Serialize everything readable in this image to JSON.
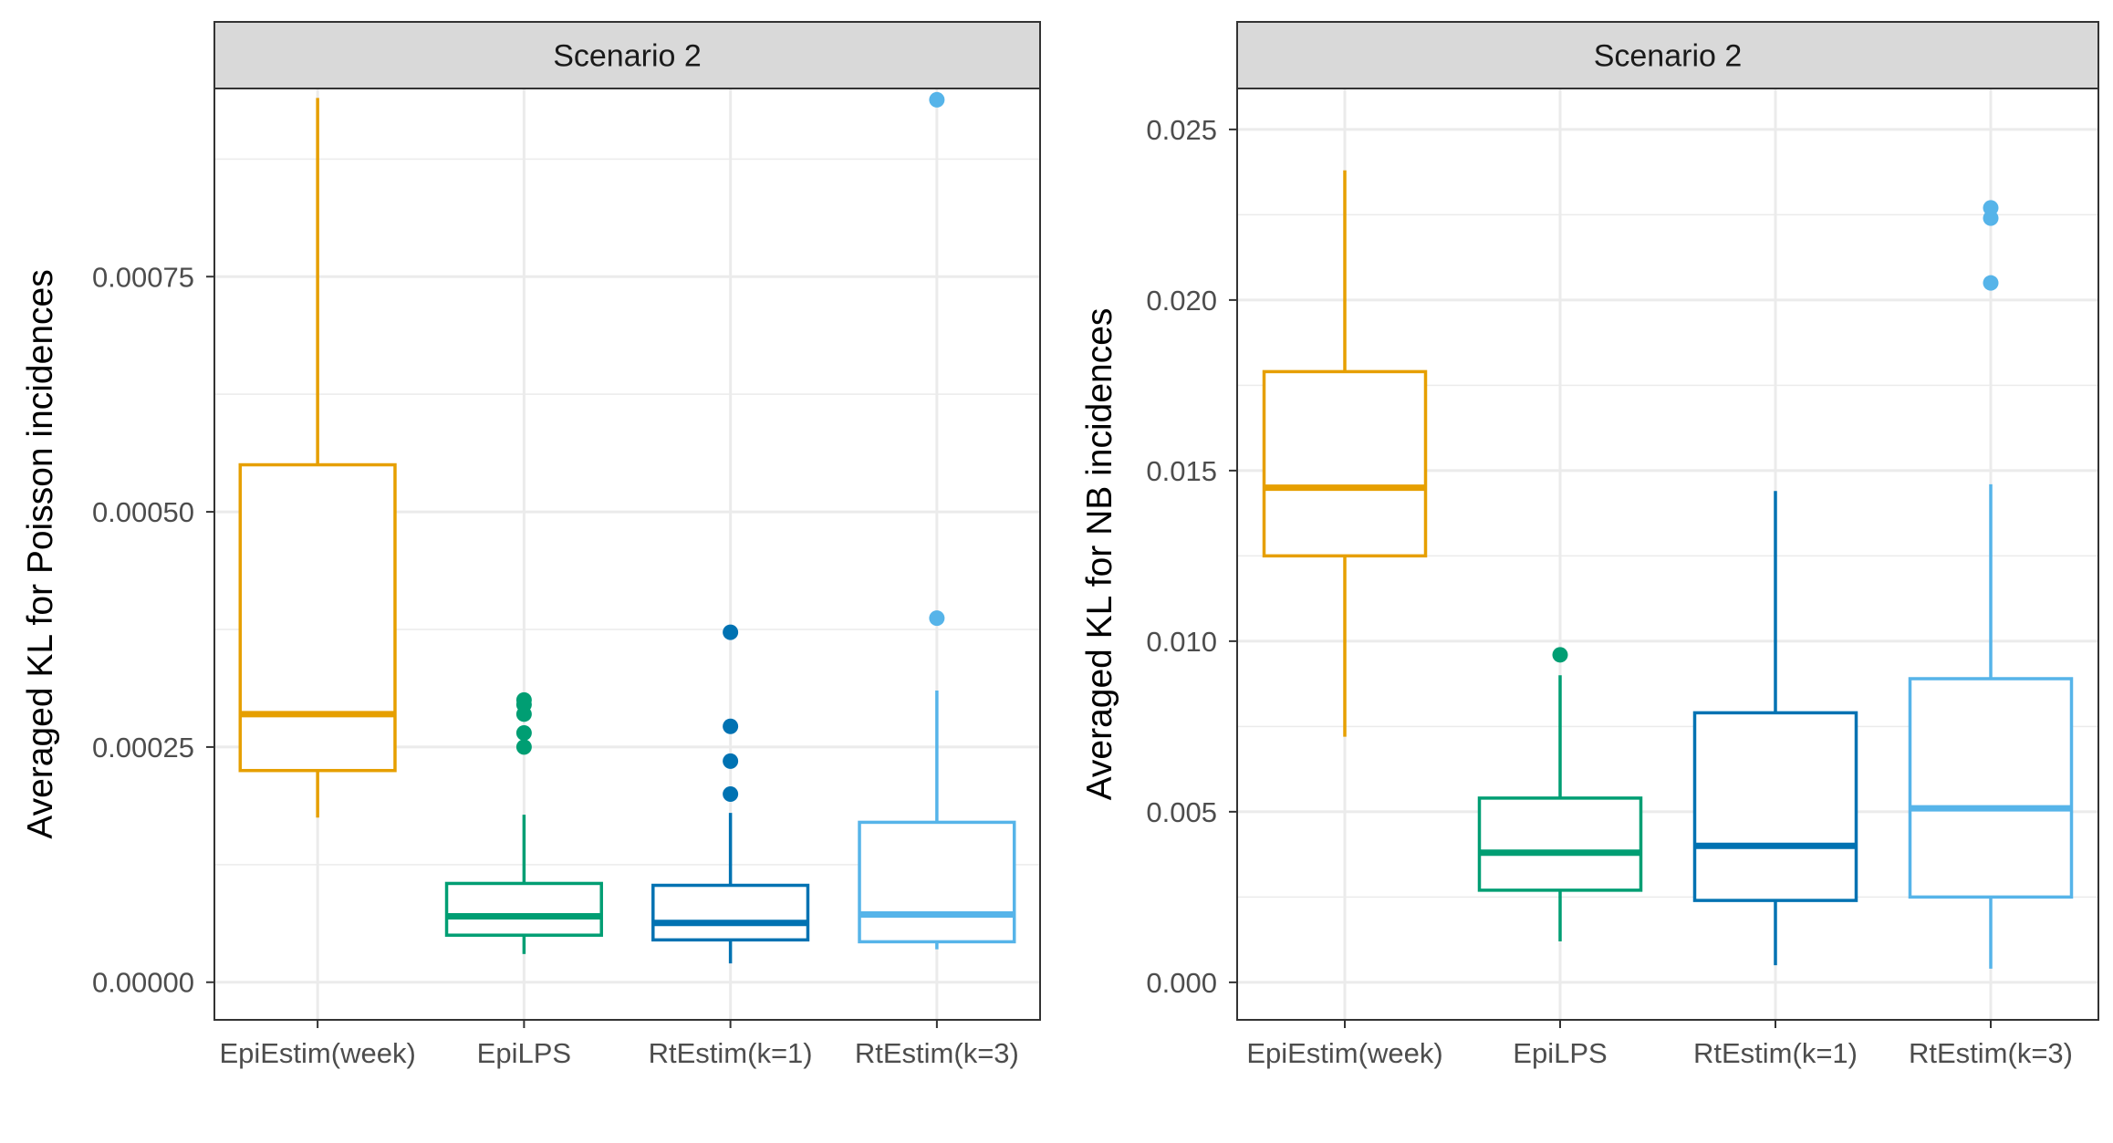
{
  "chart_data": [
    {
      "type": "box",
      "facet_title": "Scenario 2",
      "ylabel": "Averaged KL for Poisson incidences",
      "xlabel": "",
      "ylim": [
        -4e-05,
        0.00095
      ],
      "yticks": [
        0,
        0.00025,
        0.0005,
        0.00075
      ],
      "ytick_labels": [
        "0.00000",
        "0.00025",
        "0.00050",
        "0.00075"
      ],
      "grid": true,
      "legend": "none",
      "categories": [
        "EpiEstim(week)",
        "EpiLPS",
        "RtEstim(k=1)",
        "RtEstim(k=3)"
      ],
      "colors": [
        "#E69F00",
        "#009E73",
        "#0072B2",
        "#56B4E9"
      ],
      "boxes": [
        {
          "whisker_low": 0.000175,
          "q1": 0.000225,
          "median": 0.000285,
          "q3": 0.00055,
          "whisker_high": 0.00094,
          "outliers": []
        },
        {
          "whisker_low": 3e-05,
          "q1": 5e-05,
          "median": 7e-05,
          "q3": 0.000105,
          "whisker_high": 0.000178,
          "outliers": [
            0.00025,
            0.000265,
            0.000285,
            0.000295,
            0.0003
          ]
        },
        {
          "whisker_low": 2e-05,
          "q1": 4.5e-05,
          "median": 6.3e-05,
          "q3": 0.000103,
          "whisker_high": 0.00018,
          "outliers": [
            0.0002,
            0.000235,
            0.000272,
            0.000372
          ]
        },
        {
          "whisker_low": 3.5e-05,
          "q1": 4.3e-05,
          "median": 7.2e-05,
          "q3": 0.00017,
          "whisker_high": 0.00031,
          "outliers": [
            0.000387,
            0.000938
          ]
        }
      ]
    },
    {
      "type": "box",
      "facet_title": "Scenario 2",
      "ylabel": "Averaged KL for NB incidences",
      "xlabel": "",
      "ylim": [
        -0.0011,
        0.0262
      ],
      "yticks": [
        0,
        0.005,
        0.01,
        0.015,
        0.02,
        0.025
      ],
      "ytick_labels": [
        "0.000",
        "0.005",
        "0.010",
        "0.015",
        "0.020",
        "0.025"
      ],
      "grid": true,
      "legend": "none",
      "categories": [
        "EpiEstim(week)",
        "EpiLPS",
        "RtEstim(k=1)",
        "RtEstim(k=3)"
      ],
      "colors": [
        "#E69F00",
        "#009E73",
        "#0072B2",
        "#56B4E9"
      ],
      "boxes": [
        {
          "whisker_low": 0.0072,
          "q1": 0.0125,
          "median": 0.0145,
          "q3": 0.0179,
          "whisker_high": 0.0238,
          "outliers": []
        },
        {
          "whisker_low": 0.0012,
          "q1": 0.0027,
          "median": 0.0038,
          "q3": 0.0054,
          "whisker_high": 0.009,
          "outliers": [
            0.0096
          ]
        },
        {
          "whisker_low": 0.0005,
          "q1": 0.0024,
          "median": 0.004,
          "q3": 0.0079,
          "whisker_high": 0.0144,
          "outliers": []
        },
        {
          "whisker_low": 0.0004,
          "q1": 0.0025,
          "median": 0.0051,
          "q3": 0.0089,
          "whisker_high": 0.0146,
          "outliers": [
            0.0205,
            0.0224,
            0.0227
          ]
        }
      ]
    }
  ]
}
